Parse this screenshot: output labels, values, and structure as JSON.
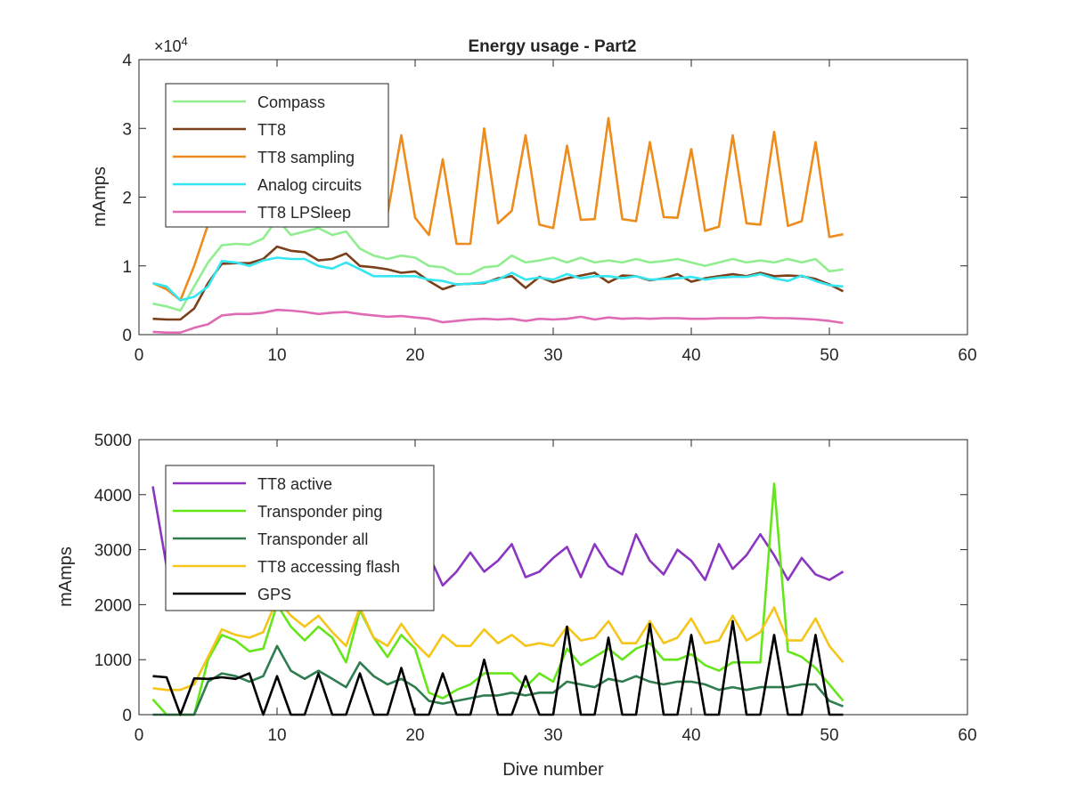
{
  "figure_title": "Energy usage - Part2",
  "chart_data": [
    {
      "type": "line",
      "title": "Energy usage - Part2",
      "xlabel": "",
      "ylabel": "mAmps",
      "xlim": [
        0,
        60
      ],
      "ylim": [
        0,
        40000
      ],
      "xticks": [
        "0",
        "10",
        "20",
        "30",
        "40",
        "50",
        "60"
      ],
      "yticks": [
        "0",
        "1",
        "2",
        "3",
        "4"
      ],
      "y_exponent_label": "×10",
      "y_exponent_power": "4",
      "legend_position": "top-left",
      "grid": false,
      "x": [
        1,
        2,
        3,
        4,
        5,
        6,
        7,
        8,
        9,
        10,
        11,
        12,
        13,
        14,
        15,
        16,
        17,
        18,
        19,
        20,
        21,
        22,
        23,
        24,
        25,
        26,
        27,
        28,
        29,
        30,
        31,
        32,
        33,
        34,
        35,
        36,
        37,
        38,
        39,
        40,
        41,
        42,
        43,
        44,
        45,
        46,
        47,
        48,
        49,
        50,
        51
      ],
      "series": [
        {
          "name": "Compass",
          "color": "#90ee90",
          "values": [
            4500,
            4100,
            3500,
            7000,
            10500,
            13000,
            13200,
            13100,
            14000,
            16800,
            14500,
            15000,
            15500,
            14500,
            15000,
            12500,
            11500,
            11000,
            11500,
            11200,
            10000,
            9800,
            8800,
            8800,
            9800,
            10000,
            11500,
            10500,
            10800,
            11200,
            10500,
            11200,
            10500,
            10800,
            10500,
            11000,
            10500,
            10700,
            11000,
            10500,
            10000,
            10500,
            11000,
            10500,
            10800,
            10500,
            11000,
            10500,
            11000,
            9200,
            9500
          ]
        },
        {
          "name": "TT8",
          "color": "#7b3f1a",
          "values": [
            2300,
            2200,
            2200,
            3800,
            7500,
            10300,
            10400,
            10400,
            11000,
            12800,
            12200,
            12000,
            10800,
            11000,
            11800,
            10000,
            9800,
            9500,
            9000,
            9200,
            7800,
            6600,
            7300,
            7400,
            7500,
            8200,
            8500,
            6800,
            8400,
            7600,
            8200,
            8600,
            9000,
            7600,
            8600,
            8500,
            7900,
            8200,
            8800,
            7700,
            8200,
            8500,
            8800,
            8500,
            9000,
            8500,
            8600,
            8500,
            8100,
            7300,
            6300
          ]
        },
        {
          "name": "TT8 sampling",
          "color": "#ee8c1b",
          "values": [
            7500,
            6600,
            5000,
            10000,
            16000,
            22000,
            24500,
            27000,
            18500,
            21000,
            23000,
            26000,
            24500,
            22000,
            19000,
            20000,
            18500,
            17500,
            29000,
            17000,
            14500,
            25500,
            13200,
            13200,
            30000,
            16200,
            18000,
            29000,
            16000,
            15500,
            27500,
            16700,
            16800,
            31500,
            16800,
            16500,
            28000,
            17100,
            17000,
            27000,
            15100,
            15700,
            29000,
            16200,
            16000,
            29500,
            15800,
            16500,
            28000,
            14200,
            14600
          ]
        },
        {
          "name": "Analog circuits",
          "color": "#33e6f0",
          "values": [
            7500,
            7000,
            5000,
            5500,
            7000,
            10700,
            10500,
            10000,
            10800,
            11200,
            11000,
            11000,
            10000,
            9600,
            10500,
            9500,
            8500,
            8500,
            8500,
            8500,
            8000,
            7800,
            7300,
            7400,
            7600,
            8000,
            9000,
            8000,
            8300,
            8000,
            8800,
            8200,
            8500,
            8500,
            8200,
            8500,
            8000,
            8100,
            8200,
            8400,
            8000,
            8300,
            8400,
            8400,
            8800,
            8200,
            7800,
            8600,
            7800,
            7200,
            7000
          ]
        },
        {
          "name": "TT8 LPSleep",
          "color": "#e06ab4",
          "values": [
            400,
            300,
            300,
            1000,
            1500,
            2800,
            3000,
            3000,
            3200,
            3600,
            3500,
            3300,
            3000,
            3200,
            3300,
            3000,
            2800,
            2600,
            2700,
            2500,
            2300,
            1800,
            2000,
            2200,
            2300,
            2200,
            2300,
            2000,
            2300,
            2200,
            2300,
            2600,
            2200,
            2500,
            2300,
            2400,
            2300,
            2400,
            2400,
            2300,
            2300,
            2400,
            2400,
            2400,
            2500,
            2400,
            2400,
            2300,
            2200,
            2000,
            1700
          ]
        }
      ]
    },
    {
      "type": "line",
      "title": "",
      "xlabel": "Dive number",
      "ylabel": "mAmps",
      "xlim": [
        0,
        60
      ],
      "ylim": [
        0,
        5000
      ],
      "xticks": [
        "0",
        "10",
        "20",
        "30",
        "40",
        "50",
        "60"
      ],
      "yticks": [
        "0",
        "1000",
        "2000",
        "3000",
        "4000",
        "5000"
      ],
      "legend_position": "top-left",
      "grid": false,
      "x": [
        1,
        2,
        3,
        4,
        5,
        6,
        7,
        8,
        9,
        10,
        11,
        12,
        13,
        14,
        15,
        16,
        17,
        18,
        19,
        20,
        21,
        22,
        23,
        24,
        25,
        26,
        27,
        28,
        29,
        30,
        31,
        32,
        33,
        34,
        35,
        36,
        37,
        38,
        39,
        40,
        41,
        42,
        43,
        44,
        45,
        46,
        47,
        48,
        49,
        50,
        51
      ],
      "series": [
        {
          "name": "TT8 active",
          "color": "#8b35c2",
          "values": [
            4150,
            2700,
            2600,
            2800,
            2900,
            3000,
            3100,
            2900,
            2600,
            3200,
            3000,
            2900,
            3000,
            2800,
            3100,
            2900,
            2700,
            2800,
            2600,
            2950,
            2900,
            2350,
            2600,
            2950,
            2600,
            2800,
            3100,
            2500,
            2600,
            2850,
            3050,
            2500,
            3100,
            2700,
            2550,
            3280,
            2800,
            2550,
            3000,
            2800,
            2450,
            3100,
            2650,
            2900,
            3280,
            2900,
            2450,
            2850,
            2550,
            2450,
            2600
          ]
        },
        {
          "name": "Transponder ping",
          "color": "#66e61a",
          "values": [
            280,
            0,
            0,
            0,
            1000,
            1450,
            1350,
            1150,
            1200,
            2000,
            1600,
            1350,
            1600,
            1400,
            950,
            1900,
            1400,
            1050,
            1450,
            1200,
            400,
            300,
            450,
            550,
            750,
            750,
            750,
            500,
            750,
            600,
            1200,
            900,
            1050,
            1200,
            1000,
            1200,
            1300,
            1000,
            1000,
            1100,
            900,
            800,
            950,
            950,
            950,
            4200,
            1150,
            1050,
            850,
            550,
            250
          ]
        },
        {
          "name": "Transponder all",
          "color": "#2f7d4f",
          "values": [
            0,
            0,
            0,
            0,
            600,
            750,
            700,
            600,
            700,
            1250,
            800,
            650,
            800,
            650,
            500,
            950,
            700,
            550,
            650,
            500,
            250,
            200,
            250,
            300,
            350,
            350,
            400,
            350,
            400,
            400,
            600,
            550,
            500,
            650,
            600,
            700,
            600,
            550,
            600,
            600,
            550,
            450,
            500,
            450,
            500,
            500,
            500,
            550,
            550,
            250,
            150
          ]
        },
        {
          "name": "TT8 accessing flash",
          "color": "#f5c51a",
          "values": [
            480,
            450,
            450,
            550,
            1050,
            1550,
            1450,
            1400,
            1500,
            2100,
            1800,
            1600,
            1800,
            1500,
            1250,
            1950,
            1400,
            1250,
            1650,
            1300,
            1050,
            1450,
            1250,
            1250,
            1550,
            1300,
            1450,
            1250,
            1300,
            1250,
            1600,
            1350,
            1400,
            1700,
            1300,
            1300,
            1700,
            1300,
            1400,
            1750,
            1300,
            1350,
            1800,
            1350,
            1500,
            1950,
            1350,
            1350,
            1750,
            1250,
            950
          ]
        },
        {
          "name": "GPS",
          "color": "#000000",
          "values": [
            700,
            680,
            0,
            660,
            650,
            680,
            650,
            750,
            0,
            700,
            0,
            0,
            750,
            0,
            0,
            750,
            0,
            0,
            850,
            0,
            0,
            750,
            0,
            0,
            1000,
            0,
            0,
            700,
            0,
            0,
            1600,
            0,
            0,
            1400,
            0,
            0,
            1650,
            0,
            0,
            1450,
            0,
            0,
            1700,
            0,
            0,
            1450,
            0,
            0,
            1450,
            0,
            0
          ]
        }
      ]
    }
  ]
}
